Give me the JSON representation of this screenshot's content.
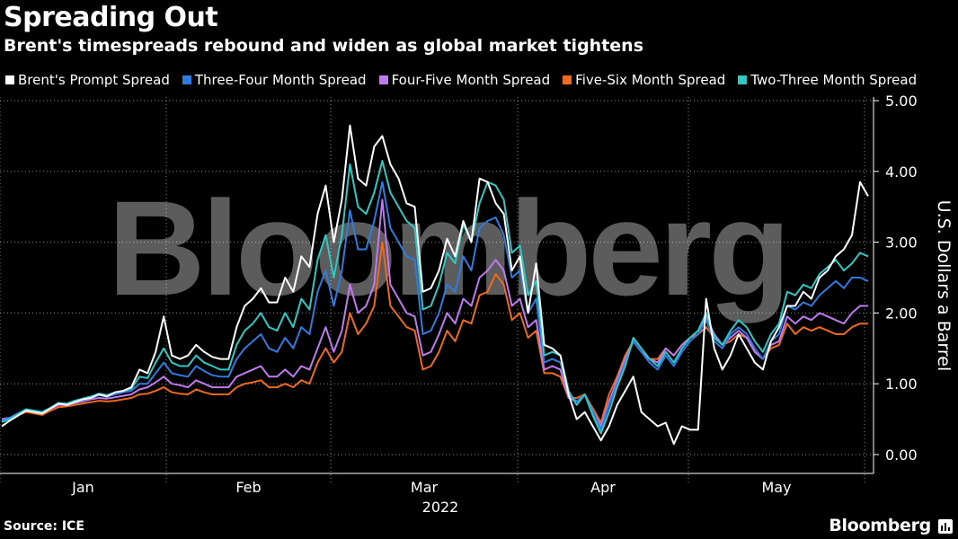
{
  "header": {
    "title": "Spreading Out",
    "subtitle": "Brent's timespreads rebound and widen as global market tightens"
  },
  "footer": {
    "source": "Source: ICE",
    "brand": "Bloomberg",
    "watermark": "Bloomberg"
  },
  "chart_data": {
    "type": "line",
    "ylabel": "U.S. Dollars a Barrel",
    "xlabel": "2022",
    "ylim": [
      -0.25,
      5.1
    ],
    "yticks": [
      "5.00",
      "4.00",
      "3.00",
      "2.00",
      "1.00",
      "0.00"
    ],
    "ytick_values": [
      5,
      4,
      3,
      2,
      1,
      0
    ],
    "xticks": [
      "Jan",
      "Feb",
      "Mar",
      "Apr",
      "May"
    ],
    "legend_position": "top",
    "grid": true,
    "series": [
      {
        "name": "Brent's Prompt Spread",
        "color": "#ffffff",
        "values": [
          0.4,
          0.48,
          0.55,
          0.62,
          0.6,
          0.58,
          0.65,
          0.72,
          0.7,
          0.74,
          0.78,
          0.8,
          0.85,
          0.82,
          0.88,
          0.9,
          0.95,
          1.2,
          1.15,
          1.45,
          1.95,
          1.4,
          1.35,
          1.4,
          1.55,
          1.45,
          1.38,
          1.35,
          1.35,
          1.8,
          2.1,
          2.2,
          2.35,
          2.15,
          2.15,
          2.5,
          2.3,
          2.8,
          2.65,
          3.4,
          3.8,
          3.0,
          3.6,
          4.65,
          3.9,
          3.8,
          4.35,
          4.5,
          4.1,
          3.9,
          3.55,
          3.5,
          2.3,
          2.35,
          2.6,
          3.05,
          2.8,
          3.3,
          3.0,
          3.9,
          3.85,
          3.55,
          3.4,
          2.6,
          2.8,
          2.0,
          2.7,
          1.55,
          1.5,
          1.4,
          0.85,
          0.5,
          0.6,
          0.4,
          0.2,
          0.4,
          0.7,
          0.9,
          1.1,
          0.6,
          0.5,
          0.4,
          0.45,
          0.15,
          0.4,
          0.35,
          0.35,
          2.2,
          1.5,
          1.2,
          1.4,
          1.7,
          1.5,
          1.3,
          1.2,
          1.6,
          1.8,
          2.1,
          2.1,
          2.3,
          2.2,
          2.5,
          2.6,
          2.8,
          2.9,
          3.1,
          3.85,
          3.65
        ]
      },
      {
        "name": "Three-Four Month Spread",
        "color": "#2f7ce0",
        "values": [
          0.48,
          0.52,
          0.58,
          0.64,
          0.62,
          0.6,
          0.66,
          0.72,
          0.71,
          0.74,
          0.77,
          0.8,
          0.84,
          0.82,
          0.85,
          0.88,
          0.9,
          1.0,
          1.0,
          1.15,
          1.3,
          1.15,
          1.12,
          1.1,
          1.25,
          1.18,
          1.12,
          1.1,
          1.1,
          1.35,
          1.5,
          1.6,
          1.7,
          1.5,
          1.45,
          1.65,
          1.5,
          1.8,
          1.7,
          2.3,
          2.6,
          2.1,
          2.6,
          3.45,
          2.9,
          2.9,
          3.3,
          3.85,
          3.2,
          3.0,
          2.8,
          2.75,
          1.7,
          1.75,
          2.0,
          2.4,
          2.3,
          2.8,
          2.6,
          3.2,
          3.3,
          3.35,
          3.1,
          2.5,
          2.6,
          2.0,
          2.2,
          1.3,
          1.35,
          1.3,
          0.85,
          0.75,
          0.85,
          0.6,
          0.35,
          0.7,
          1.0,
          1.3,
          1.6,
          1.45,
          1.3,
          1.2,
          1.4,
          1.25,
          1.45,
          1.6,
          1.7,
          1.9,
          1.6,
          1.5,
          1.7,
          1.8,
          1.7,
          1.5,
          1.35,
          1.6,
          1.7,
          2.1,
          2.05,
          2.15,
          2.1,
          2.25,
          2.35,
          2.45,
          2.35,
          2.5,
          2.5,
          2.45
        ]
      },
      {
        "name": "Four-Five Month Spread",
        "color": "#c07af0",
        "values": [
          0.5,
          0.52,
          0.58,
          0.63,
          0.6,
          0.58,
          0.65,
          0.7,
          0.7,
          0.73,
          0.75,
          0.78,
          0.8,
          0.79,
          0.81,
          0.83,
          0.85,
          0.92,
          0.95,
          1.02,
          1.1,
          1.0,
          0.98,
          0.95,
          1.05,
          1.0,
          0.95,
          0.95,
          0.95,
          1.1,
          1.15,
          1.2,
          1.25,
          1.1,
          1.1,
          1.2,
          1.1,
          1.25,
          1.2,
          1.5,
          1.8,
          1.45,
          1.75,
          2.4,
          2.0,
          2.1,
          2.4,
          3.6,
          2.4,
          2.2,
          2.0,
          1.95,
          1.4,
          1.45,
          1.7,
          2.0,
          1.85,
          2.2,
          2.1,
          2.5,
          2.6,
          2.75,
          2.6,
          2.1,
          2.2,
          1.8,
          1.9,
          1.2,
          1.25,
          1.2,
          0.8,
          0.75,
          0.85,
          0.6,
          0.4,
          0.75,
          1.05,
          1.35,
          1.6,
          1.45,
          1.35,
          1.3,
          1.5,
          1.4,
          1.55,
          1.65,
          1.75,
          1.95,
          1.7,
          1.55,
          1.65,
          1.75,
          1.65,
          1.45,
          1.35,
          1.55,
          1.6,
          1.95,
          1.85,
          1.95,
          1.9,
          2.0,
          1.95,
          1.9,
          1.85,
          2.0,
          2.1,
          2.1
        ]
      },
      {
        "name": "Five-Six Month Spread",
        "color": "#f06a1e",
        "values": [
          0.5,
          0.52,
          0.56,
          0.6,
          0.58,
          0.56,
          0.62,
          0.67,
          0.68,
          0.7,
          0.72,
          0.74,
          0.76,
          0.75,
          0.76,
          0.78,
          0.8,
          0.85,
          0.86,
          0.9,
          0.95,
          0.88,
          0.86,
          0.85,
          0.92,
          0.88,
          0.85,
          0.85,
          0.85,
          0.95,
          1.0,
          1.02,
          1.05,
          0.95,
          0.95,
          1.0,
          0.95,
          1.05,
          1.0,
          1.3,
          1.5,
          1.3,
          1.45,
          2.0,
          1.7,
          1.85,
          2.1,
          3.0,
          2.1,
          1.95,
          1.8,
          1.75,
          1.2,
          1.25,
          1.45,
          1.75,
          1.6,
          1.9,
          1.85,
          2.25,
          2.3,
          2.55,
          2.4,
          1.9,
          2.0,
          1.65,
          1.75,
          1.15,
          1.15,
          1.1,
          0.8,
          0.8,
          0.85,
          0.65,
          0.45,
          0.85,
          1.1,
          1.4,
          1.6,
          1.45,
          1.35,
          1.35,
          1.5,
          1.4,
          1.55,
          1.65,
          1.7,
          1.8,
          1.65,
          1.55,
          1.6,
          1.7,
          1.65,
          1.45,
          1.35,
          1.5,
          1.55,
          1.85,
          1.7,
          1.8,
          1.75,
          1.8,
          1.75,
          1.7,
          1.7,
          1.8,
          1.85,
          1.85
        ]
      },
      {
        "name": "Two-Three Month Spread",
        "color": "#2ec9c4",
        "values": [
          0.46,
          0.5,
          0.57,
          0.64,
          0.62,
          0.6,
          0.66,
          0.73,
          0.72,
          0.76,
          0.79,
          0.82,
          0.86,
          0.84,
          0.88,
          0.9,
          0.93,
          1.1,
          1.08,
          1.3,
          1.5,
          1.3,
          1.25,
          1.25,
          1.4,
          1.3,
          1.25,
          1.2,
          1.2,
          1.55,
          1.75,
          1.85,
          2.0,
          1.8,
          1.75,
          2.0,
          1.8,
          2.2,
          2.05,
          2.75,
          3.1,
          2.5,
          3.1,
          4.1,
          3.5,
          3.4,
          3.7,
          4.15,
          3.7,
          3.5,
          3.3,
          3.2,
          2.05,
          2.1,
          2.4,
          2.85,
          2.7,
          3.25,
          3.0,
          3.55,
          3.85,
          3.8,
          3.6,
          2.85,
          2.95,
          2.25,
          2.45,
          1.4,
          1.45,
          1.4,
          0.9,
          0.7,
          0.85,
          0.55,
          0.3,
          0.6,
          0.95,
          1.25,
          1.65,
          1.5,
          1.35,
          1.25,
          1.45,
          1.3,
          1.5,
          1.65,
          1.75,
          2.0,
          1.65,
          1.55,
          1.75,
          1.9,
          1.8,
          1.6,
          1.45,
          1.7,
          1.85,
          2.3,
          2.25,
          2.4,
          2.35,
          2.55,
          2.65,
          2.75,
          2.6,
          2.7,
          2.85,
          2.8
        ]
      }
    ]
  }
}
